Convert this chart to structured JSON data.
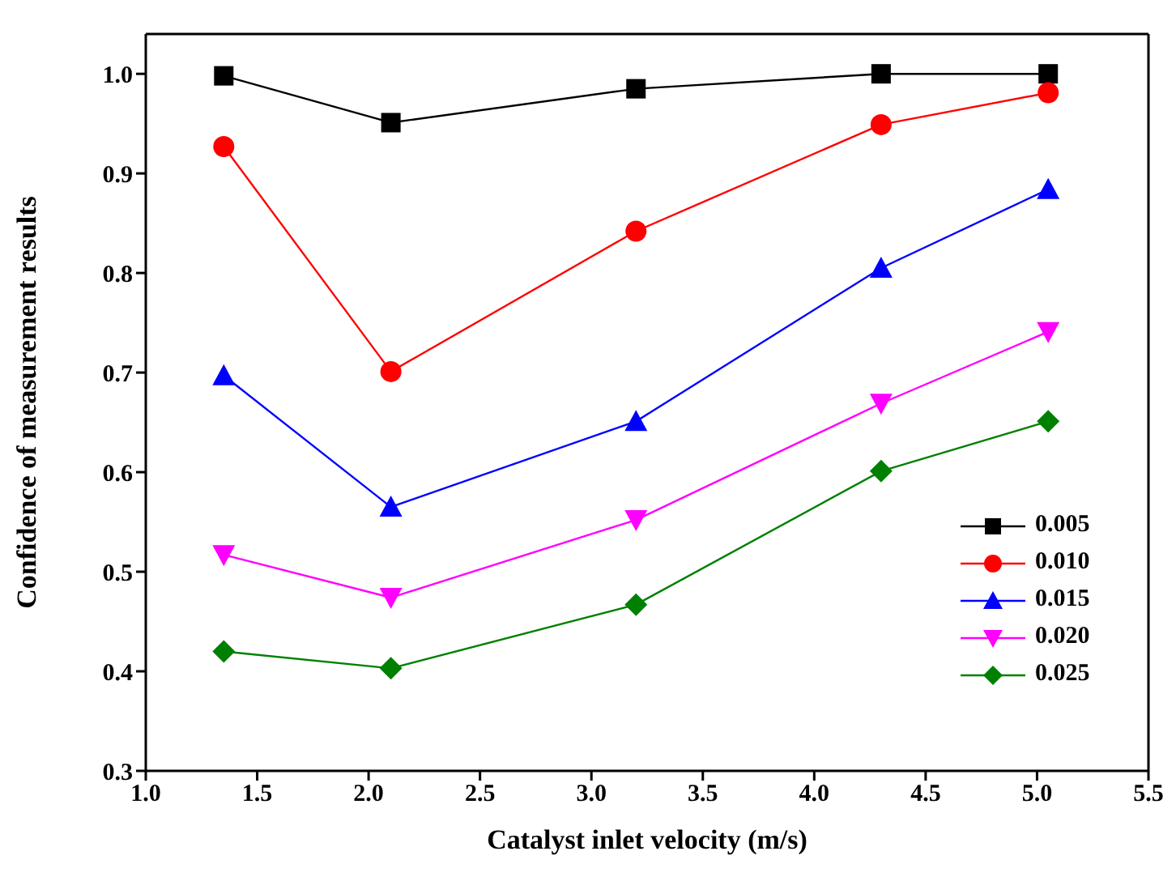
{
  "chart_data": {
    "type": "line",
    "xlabel": "Catalyst inlet velocity (m/s)",
    "ylabel": "Confidence of measurement results",
    "x": [
      1.35,
      2.1,
      3.2,
      4.3,
      5.05
    ],
    "series": [
      {
        "name": "0.005",
        "color": "#000000",
        "marker": "square",
        "values": [
          0.998,
          0.951,
          0.985,
          1.0,
          1.0
        ]
      },
      {
        "name": "0.010",
        "color": "#ff0000",
        "marker": "circle",
        "values": [
          0.927,
          0.701,
          0.842,
          0.949,
          0.981
        ]
      },
      {
        "name": "0.015",
        "color": "#0000ff",
        "marker": "triangle",
        "values": [
          0.697,
          0.565,
          0.651,
          0.805,
          0.884
        ]
      },
      {
        "name": "0.020",
        "color": "#ff00ff",
        "marker": "triangle-down",
        "values": [
          0.517,
          0.474,
          0.552,
          0.669,
          0.741
        ]
      },
      {
        "name": "0.025",
        "color": "#008000",
        "marker": "diamond",
        "values": [
          0.42,
          0.403,
          0.467,
          0.601,
          0.651
        ]
      }
    ],
    "xlim": [
      1.0,
      5.5
    ],
    "xticks": [
      {
        "value": 1,
        "label": "1.0"
      },
      1.5,
      {
        "value": 2,
        "label": "2.0"
      },
      2.5,
      {
        "value": 3,
        "label": "3.0"
      },
      3.5,
      {
        "value": 4,
        "label": "4.0"
      },
      4.5,
      {
        "value": 5,
        "label": "5.0"
      },
      5.5
    ],
    "ylim": [
      0.3,
      1.04
    ],
    "yticks": [
      0.3,
      0.4,
      0.5,
      0.6,
      0.7,
      0.8,
      0.9,
      {
        "value": 1,
        "label": "1.0"
      }
    ],
    "grid": false,
    "legend": "bottom right"
  }
}
